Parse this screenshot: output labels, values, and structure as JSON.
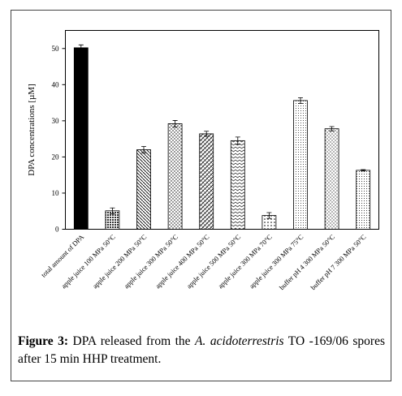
{
  "chart_data": {
    "type": "bar",
    "y_label": "DPA concentrations  [µM]",
    "categories": [
      "total amount of DPA",
      "apple juice  100 MPa 50°C",
      "apple juice  200 MPa 50°C",
      "apple juice  300 MPa 50°C",
      "apple juice  400 MPa 50°C",
      "apple juice  500 MPa 50°C",
      "apple juice  300 MPa 70°C",
      "apple juice  300 MPa 75°C",
      "buffer pH 4  300 MPa 50°C",
      "buffer pH 7  300 MPa 50°C"
    ],
    "values": [
      50.2,
      5.1,
      22.0,
      29.2,
      26.4,
      24.5,
      3.8,
      35.6,
      27.8,
      16.3
    ],
    "errors": [
      0.8,
      0.8,
      0.9,
      0.9,
      0.7,
      1.0,
      0.8,
      0.8,
      0.6,
      0.2
    ],
    "color": "#000000",
    "ylim": [
      0,
      55
    ],
    "yticks": [
      0,
      10,
      20,
      30,
      40,
      50
    ]
  },
  "caption": {
    "label": "Figure 3:",
    "text1": " DPA released from the ",
    "italic": "A. acidoterrestris",
    "text2": " TO -169/06 spores after 15 min HHP treatment."
  }
}
